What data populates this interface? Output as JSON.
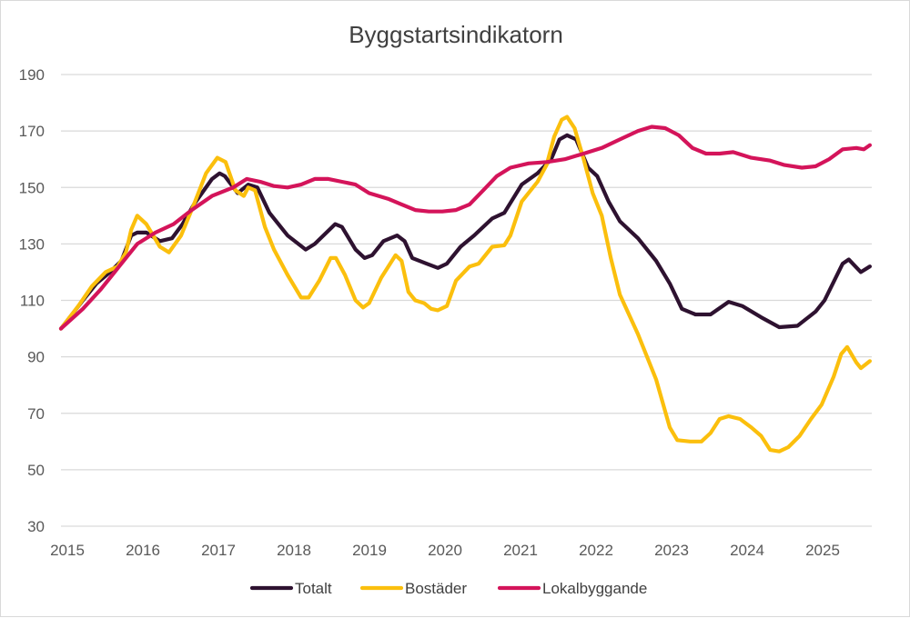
{
  "chart_data": {
    "type": "line",
    "title": "Byggstartsindikatorn",
    "xlabel": "",
    "ylabel": "",
    "xlim": [
      2015,
      2025.8
    ],
    "ylim": [
      30,
      190
    ],
    "yticks": [
      30,
      50,
      70,
      90,
      110,
      130,
      150,
      170,
      190
    ],
    "xticks": [
      2015,
      2016,
      2017,
      2018,
      2019,
      2020,
      2021,
      2022,
      2023,
      2024,
      2025
    ],
    "grid": "horizontal",
    "legend_position": "bottom",
    "series": [
      {
        "name": "Totalt",
        "color": "#2e1230",
        "x": [
          2015.0,
          2015.29,
          2015.47,
          2015.65,
          2015.8,
          2015.93,
          2016.01,
          2016.13,
          2016.31,
          2016.47,
          2016.61,
          2016.76,
          2017.0,
          2017.1,
          2017.17,
          2017.34,
          2017.48,
          2017.6,
          2017.76,
          2018.0,
          2018.24,
          2018.36,
          2018.63,
          2018.72,
          2018.9,
          2019.02,
          2019.12,
          2019.27,
          2019.45,
          2019.55,
          2019.65,
          2019.84,
          2019.99,
          2020.11,
          2020.29,
          2020.47,
          2020.71,
          2020.87,
          2021.1,
          2021.31,
          2021.49,
          2021.6,
          2021.7,
          2021.82,
          2021.98,
          2022.1,
          2022.25,
          2022.4,
          2022.64,
          2022.88,
          2023.06,
          2023.22,
          2023.4,
          2023.6,
          2023.84,
          2024.02,
          2024.27,
          2024.51,
          2024.75,
          2024.99,
          2025.11,
          2025.35,
          2025.43,
          2025.59,
          2025.71
        ],
        "values": [
          100,
          110,
          116,
          120,
          124,
          133,
          134,
          134,
          131,
          132,
          137,
          144,
          153,
          155,
          154,
          148,
          151,
          150,
          141,
          133,
          128,
          130,
          137,
          136,
          128,
          125,
          126,
          131,
          133,
          131,
          125,
          123,
          121.5,
          123,
          129,
          133,
          139,
          141,
          151,
          155,
          160,
          167,
          168.5,
          167,
          157,
          154,
          145,
          138,
          132,
          124,
          116,
          107,
          105,
          105,
          109.5,
          108,
          104,
          100.5,
          101,
          106,
          110,
          123,
          124.5,
          120,
          122
        ]
      },
      {
        "name": "Bostäder",
        "color": "#fbbf0d",
        "x": [
          2015.0,
          2015.23,
          2015.41,
          2015.59,
          2015.75,
          2015.86,
          2015.93,
          2016.01,
          2016.13,
          2016.31,
          2016.43,
          2016.59,
          2016.76,
          2016.92,
          2017.07,
          2017.18,
          2017.31,
          2017.42,
          2017.48,
          2017.57,
          2017.7,
          2017.82,
          2018.0,
          2018.18,
          2018.28,
          2018.42,
          2018.57,
          2018.64,
          2018.76,
          2018.9,
          2019.0,
          2019.08,
          2019.24,
          2019.43,
          2019.51,
          2019.6,
          2019.69,
          2019.81,
          2019.9,
          2019.99,
          2020.11,
          2020.23,
          2020.41,
          2020.53,
          2020.71,
          2020.87,
          2020.95,
          2021.1,
          2021.31,
          2021.43,
          2021.53,
          2021.63,
          2021.7,
          2021.8,
          2021.92,
          2022.04,
          2022.16,
          2022.28,
          2022.4,
          2022.64,
          2022.88,
          2023.06,
          2023.16,
          2023.33,
          2023.48,
          2023.6,
          2023.72,
          2023.84,
          2023.99,
          2024.14,
          2024.27,
          2024.39,
          2024.51,
          2024.63,
          2024.78,
          2024.93,
          2025.07,
          2025.23,
          2025.33,
          2025.41,
          2025.53,
          2025.59,
          2025.71
        ],
        "values": [
          100,
          108,
          115,
          120,
          122,
          127,
          135,
          140,
          137,
          129,
          127,
          133,
          144,
          155,
          160.5,
          159,
          149,
          147,
          150,
          149,
          136,
          128,
          119,
          111,
          111,
          117,
          125,
          125,
          119,
          110,
          107.5,
          109,
          118,
          126,
          124,
          113,
          110,
          109,
          107,
          106.5,
          108,
          117,
          122,
          123,
          129,
          129.5,
          133,
          145,
          152,
          158,
          168,
          174,
          175,
          171,
          160,
          148,
          140,
          125,
          112,
          98,
          82,
          65,
          60.5,
          60,
          60,
          63,
          68,
          69,
          68,
          65,
          62,
          57,
          56.5,
          58,
          62,
          68,
          73,
          83,
          91,
          93.5,
          88,
          86,
          88.5
        ]
      },
      {
        "name": "Lokalbyggande",
        "color": "#d4145a",
        "x": [
          2015.0,
          2015.29,
          2015.53,
          2015.77,
          2016.01,
          2016.25,
          2016.49,
          2016.73,
          2017.0,
          2017.28,
          2017.46,
          2017.64,
          2017.82,
          2018.0,
          2018.18,
          2018.36,
          2018.54,
          2018.72,
          2018.9,
          2019.08,
          2019.33,
          2019.51,
          2019.69,
          2019.87,
          2020.05,
          2020.23,
          2020.41,
          2020.59,
          2020.77,
          2020.95,
          2021.19,
          2021.43,
          2021.67,
          2021.92,
          2022.16,
          2022.4,
          2022.64,
          2022.82,
          2023.0,
          2023.18,
          2023.36,
          2023.54,
          2023.72,
          2023.9,
          2024.14,
          2024.39,
          2024.57,
          2024.81,
          2024.99,
          2025.17,
          2025.35,
          2025.53,
          2025.63,
          2025.71
        ],
        "values": [
          100,
          107,
          114,
          122,
          130,
          134,
          137,
          142,
          147,
          150,
          153,
          152,
          150.5,
          150,
          151,
          153,
          153,
          152,
          151,
          148,
          146,
          144,
          142,
          141.5,
          141.5,
          142,
          144,
          149,
          154,
          157,
          158.5,
          159,
          160,
          162,
          164,
          167,
          170,
          171.5,
          171,
          168.5,
          164,
          162,
          162,
          162.5,
          160.5,
          159.5,
          158,
          157,
          157.5,
          160,
          163.5,
          164,
          163.5,
          165
        ]
      }
    ]
  }
}
